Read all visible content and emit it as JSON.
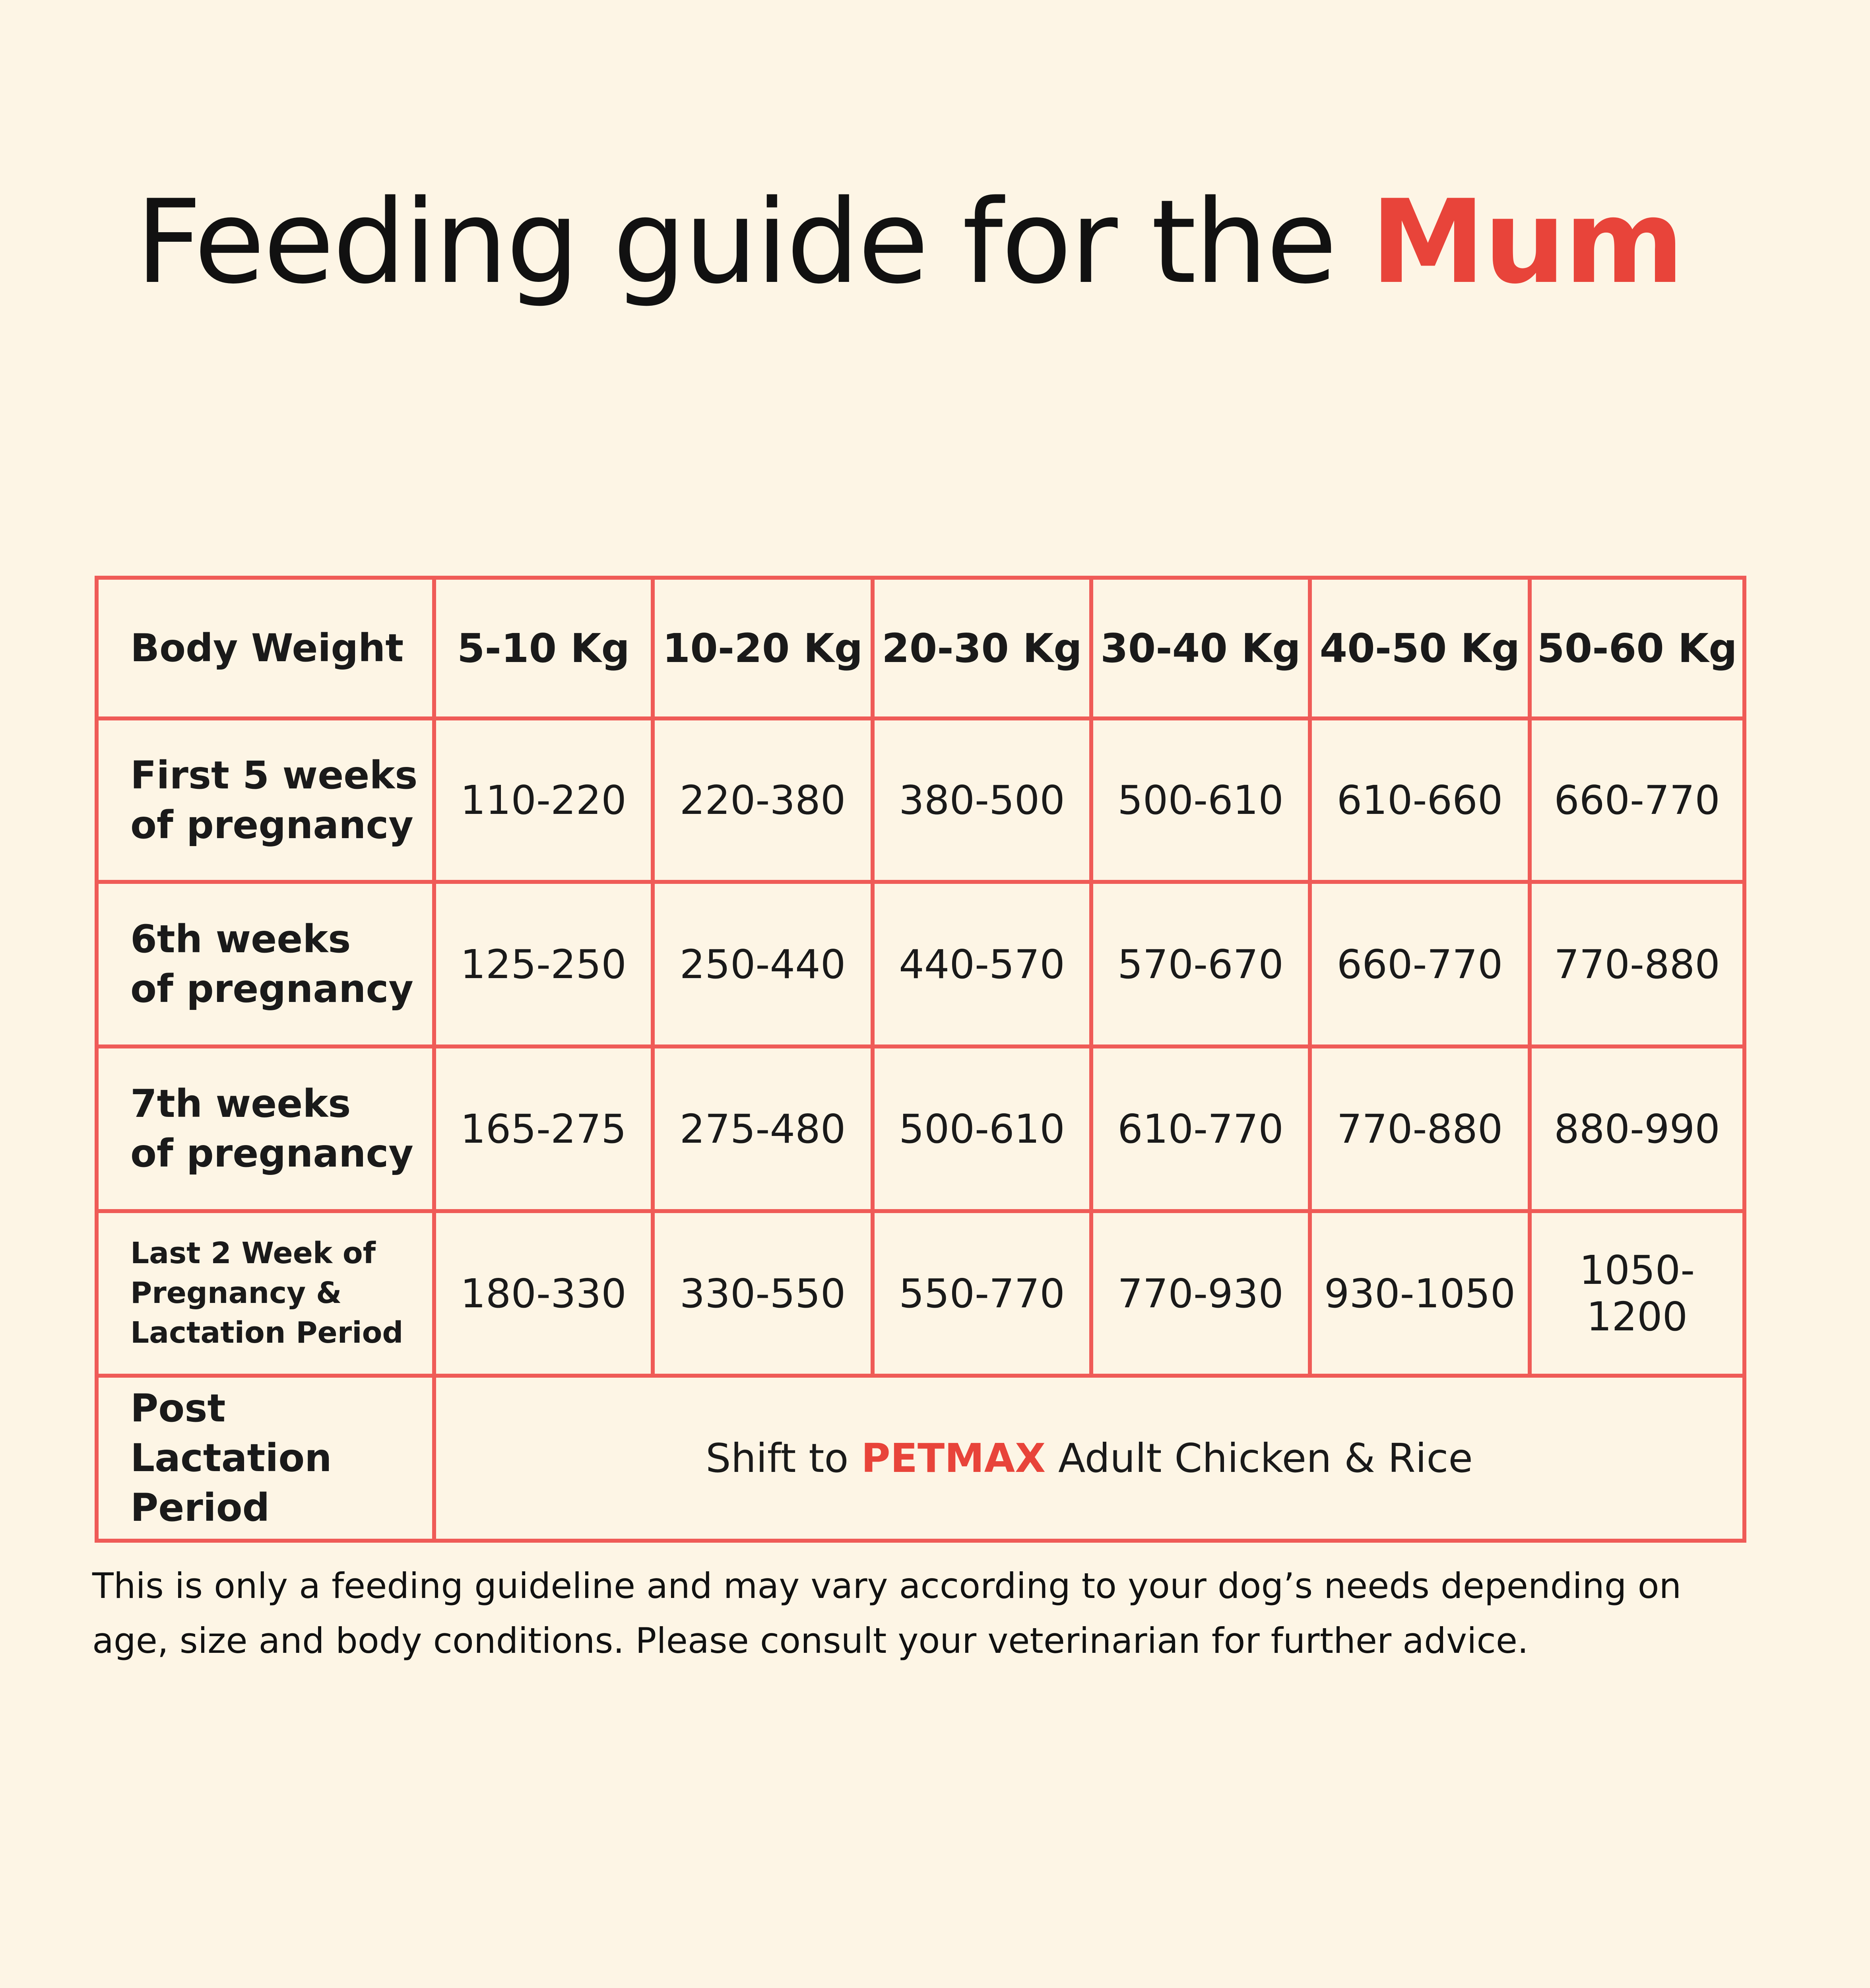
{
  "title": {
    "prefix": "Feeding guide for the ",
    "highlight": "Mum"
  },
  "table": {
    "header": [
      "Body Weight",
      "5-10 Kg",
      "10-20 Kg",
      "20-30 Kg",
      "30-40 Kg",
      "40-50 Kg",
      "50-60 Kg"
    ],
    "rows": [
      {
        "label": [
          "First 5 weeks",
          "of pregnancy"
        ],
        "values": [
          "110-220",
          "220-380",
          "380-500",
          "500-610",
          "610-660",
          "660-770"
        ]
      },
      {
        "label": [
          "6th weeks",
          "of pregnancy"
        ],
        "values": [
          "125-250",
          "250-440",
          "440-570",
          "570-670",
          "660-770",
          "770-880"
        ]
      },
      {
        "label": [
          "7th weeks",
          "of pregnancy"
        ],
        "values": [
          "165-275",
          "275-480",
          "500-610",
          "610-770",
          "770-880",
          "880-990"
        ]
      },
      {
        "label": [
          "Last 2 Week of",
          "Pregnancy &",
          "Lactation Period"
        ],
        "values": [
          "180-330",
          "330-550",
          "550-770",
          "770-930",
          "930-1050",
          "1050-1200"
        ]
      }
    ],
    "post": {
      "label": [
        "Post Lactation",
        "Period"
      ],
      "prefix": "Shift to ",
      "brand": "PETMAX",
      "suffix": " Adult Chicken & Rice"
    }
  },
  "note": "This is only a feeding guideline and may vary according to your dog’s needs depending on age, size and body conditions. Please consult your veterinarian for further advice.",
  "colors": {
    "accent": "#e8443a",
    "border": "#ef5b57",
    "background": "#fdf5e5"
  }
}
